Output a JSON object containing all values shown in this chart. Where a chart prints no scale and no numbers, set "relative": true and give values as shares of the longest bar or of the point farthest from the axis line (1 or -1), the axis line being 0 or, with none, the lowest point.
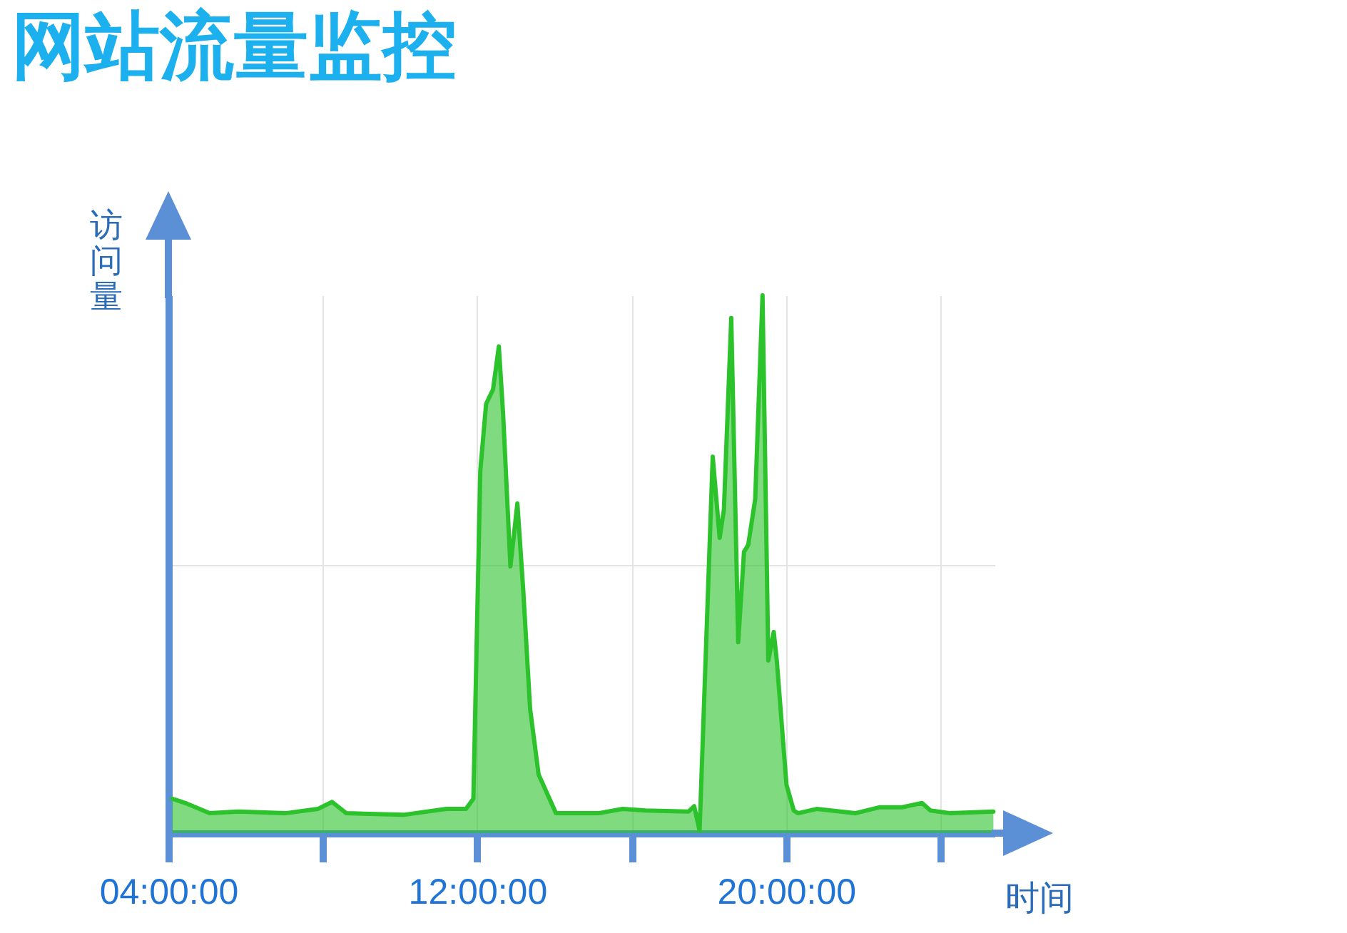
{
  "chart_data": {
    "type": "area",
    "title": "网站流量监控",
    "xlabel": "时间",
    "ylabel": "访问量",
    "relative": true,
    "x": [
      4.1,
      4.44,
      5.07,
      5.81,
      7.03,
      7.87,
      8.24,
      8.61,
      10.09,
      11.2,
      11.71,
      11.9,
      12.08,
      12.23,
      12.41,
      12.56,
      12.67,
      12.86,
      13.04,
      13.19,
      13.37,
      13.59,
      14.04,
      15.14,
      15.77,
      16.36,
      17.47,
      17.62,
      17.76,
      18.1,
      18.28,
      18.39,
      18.58,
      18.76,
      18.91,
      19.02,
      19.2,
      19.39,
      19.54,
      19.68,
      19.76,
      20.01,
      20.2,
      20.31,
      20.79,
      21.79,
      22.41,
      23.0,
      23.52,
      23.74,
      24.26,
      25.37
    ],
    "series": [
      {
        "color": "#2cc22c",
        "values": [
          0.064,
          0.056,
          0.037,
          0.04,
          0.037,
          0.045,
          0.058,
          0.037,
          0.034,
          0.045,
          0.045,
          0.064,
          0.674,
          0.798,
          0.825,
          0.905,
          0.78,
          0.496,
          0.613,
          0.454,
          0.231,
          0.109,
          0.037,
          0.037,
          0.045,
          0.042,
          0.04,
          0.05,
          0.005,
          0.7,
          0.549,
          0.602,
          0.958,
          0.355,
          0.523,
          0.536,
          0.621,
          1.0,
          0.321,
          0.374,
          0.321,
          0.09,
          0.042,
          0.037,
          0.045,
          0.037,
          0.048,
          0.048,
          0.056,
          0.042,
          0.037,
          0.04
        ]
      }
    ],
    "xlim": [
      4,
      25.4
    ],
    "xticks": [
      {
        "value": 4,
        "label": "04:00:00"
      },
      {
        "value": 8,
        "label": null
      },
      {
        "value": 12,
        "label": "12:00:00"
      },
      {
        "value": 16,
        "label": null
      },
      {
        "value": 20,
        "label": "20:00:00"
      },
      {
        "value": 24,
        "label": null
      }
    ],
    "grid": true
  }
}
